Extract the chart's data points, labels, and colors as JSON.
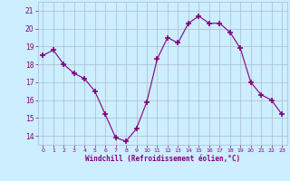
{
  "x": [
    0,
    1,
    2,
    3,
    4,
    5,
    6,
    7,
    8,
    9,
    10,
    11,
    12,
    13,
    14,
    15,
    16,
    17,
    18,
    19,
    20,
    21,
    22,
    23
  ],
  "y": [
    18.5,
    18.8,
    18.0,
    17.5,
    17.2,
    16.5,
    15.2,
    13.9,
    13.7,
    14.4,
    15.9,
    18.3,
    19.5,
    19.2,
    20.3,
    20.7,
    20.3,
    20.3,
    19.8,
    18.9,
    17.0,
    16.3,
    16.0,
    15.2
  ],
  "line_color": "#800080",
  "marker": "+",
  "marker_size": 4,
  "marker_lw": 1.2,
  "bg_color": "#cceeff",
  "grid_color": "#aabbcc",
  "xlabel": "Windchill (Refroidissement éolien,°C)",
  "xlabel_color": "#800080",
  "tick_color": "#800080",
  "ylim": [
    13.5,
    21.5
  ],
  "yticks": [
    14,
    15,
    16,
    17,
    18,
    19,
    20,
    21
  ],
  "xticks": [
    0,
    1,
    2,
    3,
    4,
    5,
    6,
    7,
    8,
    9,
    10,
    11,
    12,
    13,
    14,
    15,
    16,
    17,
    18,
    19,
    20,
    21,
    22,
    23
  ]
}
